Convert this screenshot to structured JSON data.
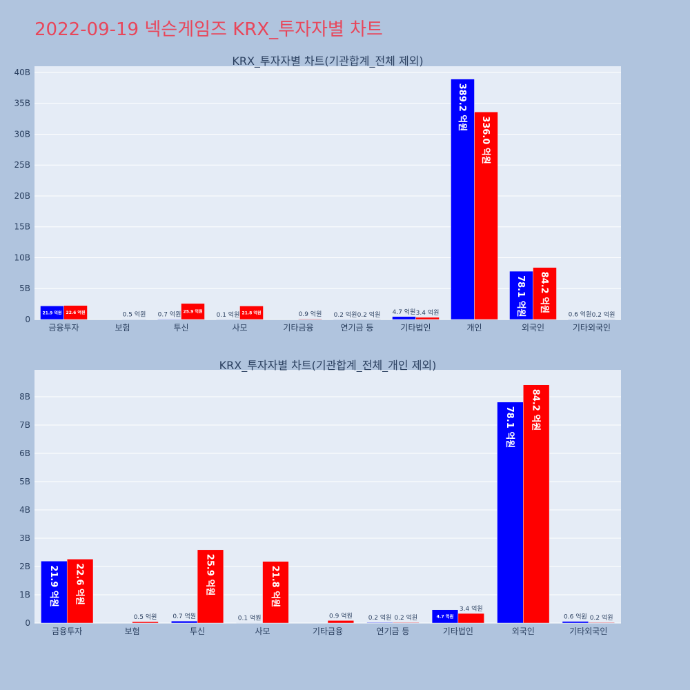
{
  "title": "2022-09-19 넥슨게임즈 KRX_투자자별 차트",
  "colors": {
    "page_bg": "#b0c4de",
    "plot_bg": "#e5ecf6",
    "title": "#e8465a",
    "series_a": "#0000ff",
    "series_b": "#ff0000",
    "text": "#2a3f5f",
    "grid": "#ffffff"
  },
  "chart_data": [
    {
      "type": "bar",
      "title": "KRX_투자자별 차트(기관합계_전체 제외)",
      "categories": [
        "금융투자",
        "보험",
        "투신",
        "사모",
        "기타금융",
        "연기금 등",
        "기타법인",
        "개인",
        "외국인",
        "기타외국인"
      ],
      "series": [
        {
          "color": "#0000ff",
          "values": [
            2190000000,
            0,
            70000000,
            10000000,
            0,
            20000000,
            470000000,
            38920000000,
            7810000000,
            60000000
          ],
          "labels": [
            "21.9 억원",
            "",
            "0.7 억원",
            "0.1 억원",
            "",
            "0.2 억원",
            "4.7 억원",
            "389.2 억원",
            "78.1 억원",
            "0.6 억원"
          ]
        },
        {
          "color": "#ff0000",
          "values": [
            2260000000,
            50000000,
            2590000000,
            2180000000,
            90000000,
            20000000,
            340000000,
            33600000000,
            8420000000,
            20000000
          ],
          "labels": [
            "22.6 억원",
            "0.5 억원",
            "25.9 억원",
            "21.8 억원",
            "0.9 억원",
            "0.2 억원",
            "3.4 억원",
            "336.0 억원",
            "84.2 억원",
            "0.2 억원"
          ]
        }
      ],
      "ylim": [
        0,
        41000000000
      ],
      "yticks": [
        0,
        5000000000,
        10000000000,
        15000000000,
        20000000000,
        25000000000,
        30000000000,
        35000000000,
        40000000000
      ],
      "ytick_labels": [
        "0",
        "5B",
        "10B",
        "15B",
        "20B",
        "25B",
        "30B",
        "35B",
        "40B"
      ],
      "grid": true
    },
    {
      "type": "bar",
      "title": "KRX_투자자별 차트(기관합계_전체_개인 제외)",
      "categories": [
        "금융투자",
        "보험",
        "투신",
        "사모",
        "기타금융",
        "연기금 등",
        "기타법인",
        "외국인",
        "기타외국인"
      ],
      "series": [
        {
          "color": "#0000ff",
          "values": [
            2190000000,
            0,
            70000000,
            10000000,
            0,
            20000000,
            470000000,
            7810000000,
            60000000
          ],
          "labels": [
            "21.9 억원",
            "",
            "0.7 억원",
            "0.1 억원",
            "",
            "0.2 억원",
            "4.7 억원",
            "78.1 억원",
            "0.6 억원"
          ]
        },
        {
          "color": "#ff0000",
          "values": [
            2260000000,
            50000000,
            2590000000,
            2180000000,
            90000000,
            20000000,
            340000000,
            8420000000,
            20000000
          ],
          "labels": [
            "22.6 억원",
            "0.5 억원",
            "25.9 억원",
            "21.8 억원",
            "0.9 억원",
            "0.2 억원",
            "3.4 억원",
            "84.2 억원",
            "0.2 억원"
          ]
        }
      ],
      "ylim": [
        0,
        8950000000
      ],
      "yticks": [
        0,
        1000000000,
        2000000000,
        3000000000,
        4000000000,
        5000000000,
        6000000000,
        7000000000,
        8000000000
      ],
      "ytick_labels": [
        "0",
        "1B",
        "2B",
        "3B",
        "4B",
        "5B",
        "6B",
        "7B",
        "8B"
      ],
      "grid": true
    }
  ]
}
